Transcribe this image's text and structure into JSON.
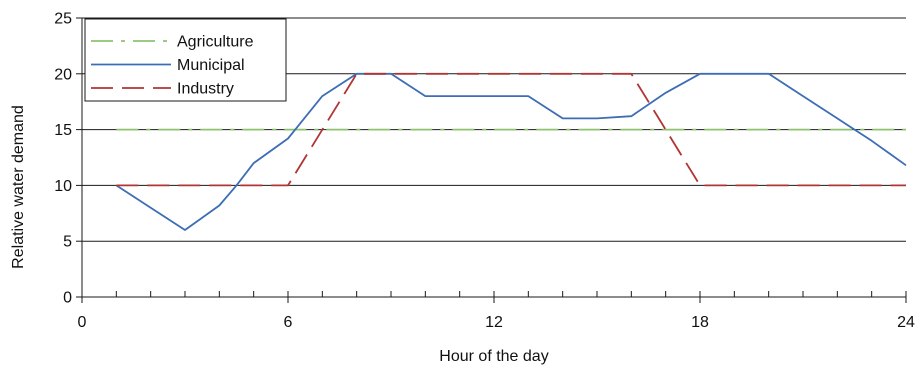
{
  "chart_data": {
    "type": "line",
    "xlabel": "Hour of the day",
    "ylabel": "Relative water demand",
    "xlim": [
      0,
      24
    ],
    "ylim": [
      0,
      25
    ],
    "x_ticks": [
      0,
      6,
      12,
      18,
      24
    ],
    "x_minor_ticks": [
      1,
      2,
      3,
      4,
      5,
      7,
      8,
      9,
      10,
      11,
      13,
      14,
      15,
      16,
      17,
      19,
      20,
      21,
      22,
      23
    ],
    "y_ticks": [
      0,
      5,
      10,
      15,
      20,
      25
    ],
    "grid": "horizontal",
    "legend_position": "top-left",
    "series": [
      {
        "name": "Agriculture",
        "style": "dash-dot",
        "color": "#8dc26f",
        "points": [
          [
            1,
            15
          ],
          [
            24,
            15
          ]
        ]
      },
      {
        "name": "Municipal",
        "style": "solid",
        "color": "#3d6db5",
        "points": [
          [
            1,
            10
          ],
          [
            2,
            8
          ],
          [
            3,
            6
          ],
          [
            4,
            8.2
          ],
          [
            4.5,
            10
          ],
          [
            5,
            12
          ],
          [
            6,
            14.2
          ],
          [
            7,
            18
          ],
          [
            8,
            20
          ],
          [
            9,
            20
          ],
          [
            10,
            18
          ],
          [
            11,
            18
          ],
          [
            12,
            18
          ],
          [
            13,
            18
          ],
          [
            14,
            16
          ],
          [
            15,
            16
          ],
          [
            16,
            16.2
          ],
          [
            17,
            18.3
          ],
          [
            18,
            20
          ],
          [
            19,
            20
          ],
          [
            20,
            20
          ],
          [
            21,
            18
          ],
          [
            22,
            16
          ],
          [
            23,
            14
          ],
          [
            24,
            11.8
          ]
        ]
      },
      {
        "name": "Industry",
        "style": "dashed",
        "color": "#b03535",
        "points": [
          [
            1,
            10
          ],
          [
            6,
            10
          ],
          [
            8,
            20
          ],
          [
            16,
            20
          ],
          [
            18,
            10
          ],
          [
            24,
            10
          ]
        ]
      }
    ]
  }
}
